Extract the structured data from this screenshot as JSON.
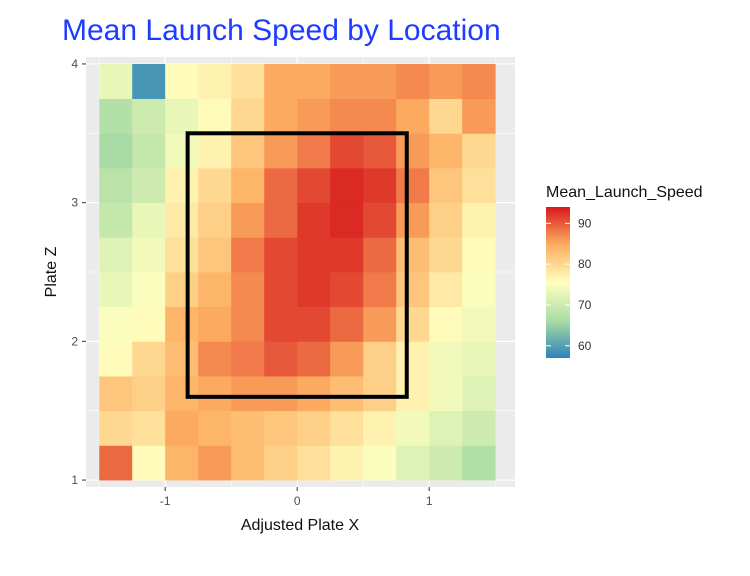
{
  "chart_data": {
    "type": "heatmap",
    "title": "Mean Launch Speed by Location",
    "xlabel": "Adjusted Plate X",
    "ylabel": "Plate Z",
    "legend_title": "Mean_Launch_Speed",
    "legend_position": "right",
    "grid": true,
    "xlim": [
      -1.6,
      1.65
    ],
    "ylim": [
      0.95,
      4.05
    ],
    "x_ticks": [
      -1,
      0,
      1
    ],
    "x_tick_labels": [
      "-1",
      "0",
      "1"
    ],
    "y_ticks": [
      1,
      2,
      3,
      4
    ],
    "y_tick_labels": [
      "1",
      "2",
      "3",
      "4"
    ],
    "legend_ticks": [
      60,
      70,
      80,
      90
    ],
    "legend_tick_labels": [
      "60",
      "70",
      "80",
      "90"
    ],
    "color_range": [
      57,
      94
    ],
    "color_scale": [
      "#2b83ba",
      "#abdda4",
      "#ffffbf",
      "#fdae61",
      "#d7191c"
    ],
    "x_centers": [
      -1.375,
      -1.125,
      -0.875,
      -0.625,
      -0.375,
      -0.125,
      0.125,
      0.375,
      0.625,
      0.875,
      1.125,
      1.375
    ],
    "y_centers": [
      1.125,
      1.375,
      1.625,
      1.875,
      2.125,
      2.375,
      2.625,
      2.875,
      3.125,
      3.375,
      3.625,
      3.875
    ],
    "values": [
      [
        89,
        76,
        84,
        86,
        83,
        81,
        79,
        77,
        75,
        72,
        70,
        67
      ],
      [
        80,
        79,
        85,
        84,
        83,
        82,
        81,
        79,
        77,
        74,
        72,
        70
      ],
      [
        82,
        81,
        84,
        85,
        86,
        86,
        85,
        83,
        81,
        77,
        74,
        72
      ],
      [
        76,
        80,
        83,
        87,
        88,
        90,
        89,
        86,
        81,
        77,
        74,
        73
      ],
      [
        75,
        76,
        84,
        85,
        87,
        91,
        91,
        89,
        86,
        80,
        76,
        74
      ],
      [
        73,
        75,
        81,
        84,
        87,
        91,
        92,
        91,
        88,
        82,
        78,
        75
      ],
      [
        72,
        74,
        79,
        82,
        88,
        91,
        92,
        92,
        89,
        83,
        80,
        76
      ],
      [
        69,
        73,
        78,
        81,
        86,
        89,
        92,
        93,
        91,
        86,
        81,
        77
      ],
      [
        68,
        70,
        77,
        80,
        84,
        89,
        91,
        93,
        92,
        88,
        82,
        79
      ],
      [
        66,
        69,
        74,
        77,
        82,
        86,
        88,
        91,
        90,
        86,
        84,
        80
      ],
      [
        67,
        70,
        73,
        76,
        80,
        85,
        86,
        87,
        87,
        85,
        80,
        86
      ],
      [
        73,
        59,
        76,
        77,
        79,
        85,
        85,
        86,
        86,
        87,
        86,
        87
      ]
    ],
    "strike_zone": {
      "x0": -0.83,
      "x1": 0.83,
      "z0": 1.6,
      "z1": 3.5
    }
  }
}
